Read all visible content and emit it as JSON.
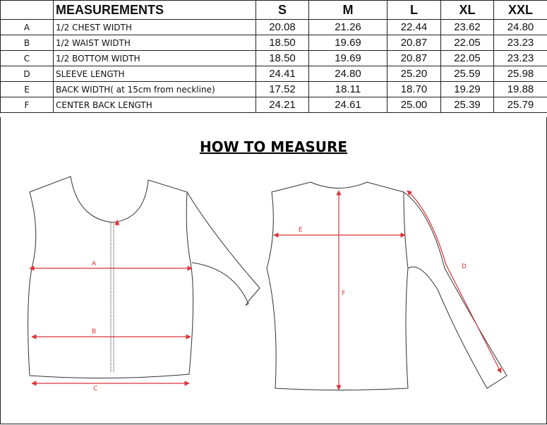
{
  "table": {
    "header": {
      "measurements": "MEASUREMENTS",
      "sizes": [
        "S",
        "M",
        "L",
        "XL",
        "XXL"
      ]
    },
    "rows": [
      {
        "letter": "A",
        "name": "1/2 CHEST WIDTH",
        "values": [
          "20.08",
          "21.26",
          "22.44",
          "23.62",
          "24.80"
        ]
      },
      {
        "letter": "B",
        "name": "1/2 WAIST WIDTH",
        "values": [
          "18.50",
          "19.69",
          "20.87",
          "22.05",
          "23.23"
        ]
      },
      {
        "letter": "C",
        "name": "1/2 BOTTOM WIDTH",
        "values": [
          "18.50",
          "19.69",
          "20.87",
          "22.05",
          "23.23"
        ]
      },
      {
        "letter": "D",
        "name": " SLEEVE LENGTH",
        "values": [
          "24.41",
          "24.80",
          "25.20",
          "25.59",
          "25.98"
        ]
      },
      {
        "letter": "E",
        "name": "BACK WIDTH( at 15cm from neckline)",
        "values": [
          "17.52",
          "18.11",
          "18.70",
          "19.29",
          "19.88"
        ]
      },
      {
        "letter": "F",
        "name": "CENTER BACK LENGTH",
        "values": [
          "24.21",
          "24.61",
          "25.00",
          "25.39",
          "25.79"
        ]
      }
    ]
  },
  "how_to_measure": {
    "title": "HOW TO MEASURE",
    "labels": {
      "A": "A",
      "B": "B",
      "C": "C",
      "D": "D",
      "E": "E",
      "F": "F"
    },
    "arrow_color": "#d9343a"
  }
}
